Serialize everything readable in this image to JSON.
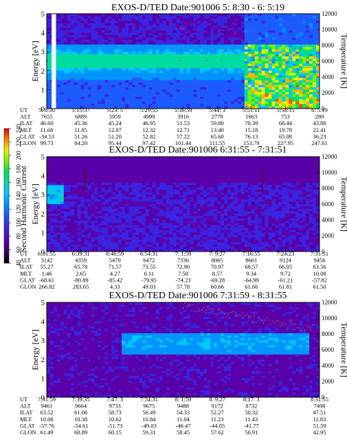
{
  "chart_data": [
    {
      "type": "heatmap",
      "title": "EXOS-D/TED   Date:901006  5: 8:30 - 6: 5:19",
      "ylabel": "Energy [eV]",
      "y2label": "Temperature [K]",
      "ylim": [
        0,
        5
      ],
      "yticks": [
        "0",
        "1",
        "2",
        "3",
        "4",
        "5"
      ],
      "y2lim": [
        0,
        12000
      ],
      "y2ticks": [
        "0",
        "2000",
        "4000",
        "6000",
        "8000",
        "10000",
        "12000"
      ],
      "ephemeris_labels": [
        "UT",
        "ALT",
        "ILAT",
        "MLT",
        "GLAT",
        "GLON"
      ],
      "ephemeris_columns": [
        {
          "x": 0.0,
          "values": [
            "5: 8:30",
            "7655",
            "46.60",
            "11.68",
            "-34.53",
            "99.73"
          ]
        },
        {
          "x": 0.125,
          "values": [
            "5:15:37",
            "6889",
            "45.36",
            "11.85",
            "51.26",
            "84.20"
          ]
        },
        {
          "x": 0.25,
          "values": [
            "5:23: 5",
            "5959",
            "45.24",
            "12.07",
            "51.20",
            "95.44"
          ]
        },
        {
          "x": 0.375,
          "values": [
            "5:29:55",
            "4999",
            "46.95",
            "12.32",
            "52.82",
            "97.42"
          ]
        },
        {
          "x": 0.5,
          "values": [
            "5:36:59",
            "3916",
            "51.53",
            "12.71",
            "57.22",
            "101.44"
          ]
        },
        {
          "x": 0.625,
          "values": [
            "5:44: 3",
            "2779",
            "59.80",
            "13.40",
            "65.60",
            "111.55"
          ]
        },
        {
          "x": 0.75,
          "values": [
            "5:51:11",
            "1663",
            "70.39",
            "15.18",
            "76.13",
            "153.79"
          ]
        },
        {
          "x": 0.875,
          "values": [
            "5:58:15",
            "753",
            "68.44",
            "19.78",
            "65.08",
            "227.95"
          ]
        },
        {
          "x": 1.0,
          "values": [
            "6: 5:19",
            "289",
            "43.88",
            "22.41",
            "36.23",
            "247.61"
          ]
        }
      ],
      "features": {
        "data_gap": [
          0.018,
          0.034
        ],
        "band": {
          "start": 0.0,
          "end": 0.73,
          "energy_range": [
            1.5,
            3.4
          ],
          "peak_energy": 2.5
        },
        "high_counts": {
          "start": 0.73,
          "end": 1.0,
          "energy_range": [
            0,
            3.4
          ]
        },
        "temperature_points": "sparse, 6000-11000 K"
      }
    },
    {
      "type": "heatmap",
      "title": "EXOS-D/TED   Date:901006  6:31:55 - 7:31:51",
      "ylabel": "Energy [eV]",
      "y2label": "Temperature [K]",
      "ylim": [
        0,
        5
      ],
      "yticks": [
        "0",
        "1",
        "2",
        "3",
        "4",
        "5"
      ],
      "y2lim": [
        0,
        12000
      ],
      "y2ticks": [
        "0",
        "2000",
        "4000",
        "6000",
        "8000",
        "10000",
        "12000"
      ],
      "ephemeris_labels": [
        "UT",
        "ALT",
        "ILAT",
        "MLT",
        "GLAT",
        "GLON"
      ],
      "ephemeris_columns": [
        {
          "x": 0.0,
          "values": [
            "6:31:55",
            "3142",
            "55.27",
            "1.46",
            "-68.61",
            "266.82"
          ]
        },
        {
          "x": 0.125,
          "values": [
            "6:39:31",
            "4359",
            "65.78",
            "2.65",
            "-80.89",
            "283.65"
          ]
        },
        {
          "x": 0.25,
          "values": [
            "6:46:59",
            "5470",
            "71.57",
            "4.27",
            "-85.42",
            "4.33"
          ]
        },
        {
          "x": 0.375,
          "values": [
            "6:54:31",
            "6472",
            "73.55",
            "6.11",
            "-79.95",
            "49.03"
          ]
        },
        {
          "x": 0.5,
          "values": [
            "7: 1:59",
            "7336",
            "72.90",
            "7.58",
            "-74.23",
            "57.78"
          ]
        },
        {
          "x": 0.625,
          "values": [
            "7: 9:27",
            "8065",
            "70.97",
            "8.57",
            "-69.28",
            "60.66"
          ]
        },
        {
          "x": 0.75,
          "values": [
            "7:16:55",
            "8661",
            "68.57",
            "9.34",
            "-64.99",
            "61.66"
          ]
        },
        {
          "x": 0.875,
          "values": [
            "7:24:23",
            "9124",
            "66.05",
            "9.72",
            "-61.21",
            "61.81"
          ]
        },
        {
          "x": 1.0,
          "values": [
            "7:31:51",
            "9456",
            "63.56",
            "10.08",
            "-57.82",
            "61.50"
          ]
        }
      ],
      "features": {
        "band": {
          "start": 0.0,
          "end": 0.06,
          "energy_range": [
            2.5,
            3.5
          ],
          "peak_energy": 3.0
        },
        "spikes": [
          0.14,
          0.79
        ],
        "background": "low counts"
      }
    },
    {
      "type": "heatmap",
      "title": "EXOS-D/TED   Date:901006  7:31:59 - 8:31:55",
      "ylabel": "Energy [eV]",
      "y2label": "Temperature [K]",
      "ylim": [
        0,
        5
      ],
      "yticks": [
        "0",
        "1",
        "2",
        "3",
        "4",
        "5"
      ],
      "y2lim": [
        0,
        12000
      ],
      "y2ticks": [
        "0",
        "2000",
        "4000",
        "6000",
        "8000",
        "10000",
        "12000"
      ],
      "ephemeris_labels": [
        "UT",
        "ALT",
        "ILAT",
        "MLT",
        "GLAT",
        "GLON"
      ],
      "ephemeris_columns": [
        {
          "x": 0.0,
          "values": [
            "7:31:59",
            "9461",
            "63.52",
            "10.08",
            "-57.76",
            "61.49"
          ]
        },
        {
          "x": 0.125,
          "values": [
            "7:39:35",
            "9664",
            "61.06",
            "10.38",
            "-54.61",
            "60.89"
          ]
        },
        {
          "x": 0.25,
          "values": [
            "7:47: 3",
            "9733",
            "58.73",
            "10.62",
            "-51.73",
            "60.15"
          ]
        },
        {
          "x": 0.375,
          "values": [
            "7:54:31",
            "9675",
            "56.49",
            "10.84",
            "-49.03",
            "59.31"
          ]
        },
        {
          "x": 0.5,
          "values": [
            "8: 1:59",
            "9488",
            "54.33",
            "11.04",
            "-46.47",
            "58.45"
          ]
        },
        {
          "x": 0.625,
          "values": [
            "8: 9:27",
            "9172",
            "52.27",
            "11.23",
            "-44.05",
            "57.62"
          ]
        },
        {
          "x": 0.75,
          "values": [
            "8:17: 3",
            "8732",
            "50.32",
            "11.43",
            "-41.77",
            "56.91"
          ]
        },
        {
          "x": 1.0,
          "values": [
            "8:31:55",
            "7498",
            "47.51",
            "11.83",
            "51.59",
            "42.95"
          ]
        }
      ],
      "features": {
        "band": {
          "start": 0.28,
          "end": 0.96,
          "energy_range": [
            2.2,
            3.4
          ],
          "peak_energy": 2.9
        },
        "temperature_points": "dotted curve rising from about 8000 K to 11500 K"
      }
    }
  ],
  "colorbar": {
    "label": "Second Harmonic Current",
    "ticks": [
      "40",
      "60",
      "80",
      "100",
      "120",
      "140",
      "160",
      "180",
      "200",
      "220",
      "240"
    ],
    "colors": [
      "#000000",
      "#3a0058",
      "#5a00a8",
      "#3a24e0",
      "#1c5cff",
      "#0094ff",
      "#00c8ff",
      "#00dca0",
      "#00e060",
      "#7cf000",
      "#e8f000",
      "#ffb000",
      "#ff5000",
      "#e00000"
    ]
  }
}
